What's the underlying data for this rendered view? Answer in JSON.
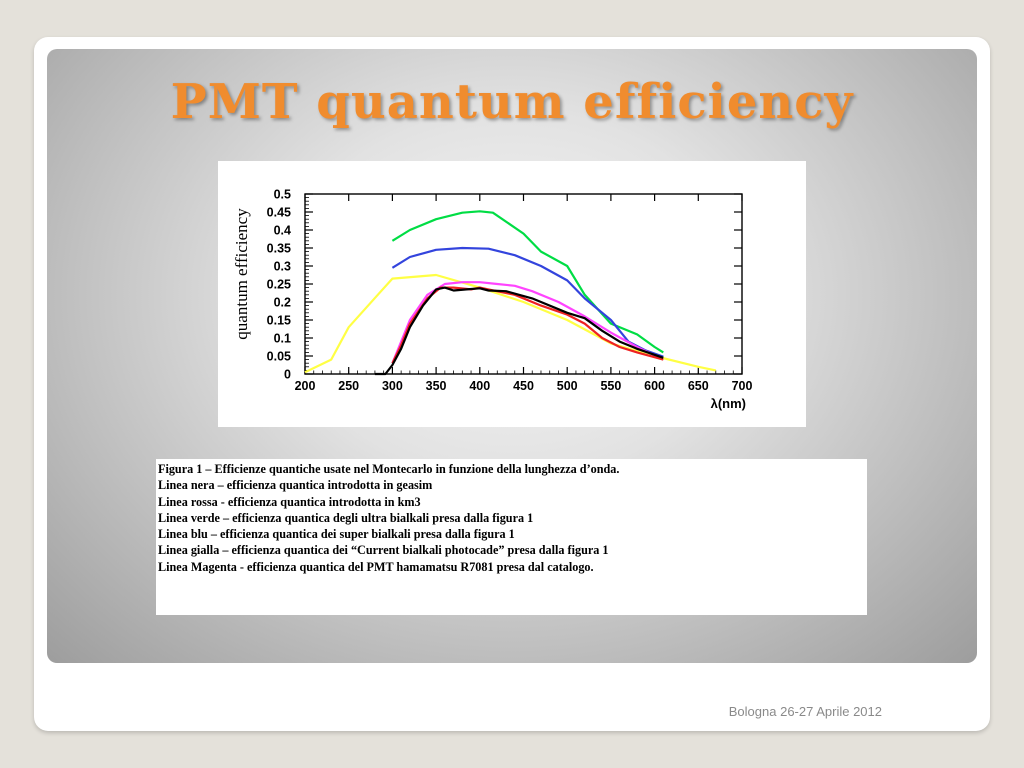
{
  "slide": {
    "title": "PMT quantum efficiency",
    "footer": "Bologna 26-27 Aprile 2012"
  },
  "caption": {
    "lines": [
      "Figura 1 – Efficienze quantiche usate nel Montecarlo in funzione della lunghezza d’onda.",
      "Linea nera – efficienza quantica introdotta in geasim",
      "Linea rossa -  efficienza quantica introdotta in km3",
      "Linea verde – efficienza quantica degli ultra bialkali presa dalla figura 1",
      "Linea blu – efficienza quantica dei super bialkali presa dalla figura 1",
      "Linea gialla – efficienza quantica  dei “Current bialkali photocade” presa dalla figura 1",
      "Linea Magenta - efficienza quantica  del PMT hamamatsu R7081 presa dal catalogo."
    ]
  },
  "chart_data": {
    "type": "line",
    "title": "",
    "xlabel": "λ(nm)",
    "ylabel": "quantum efficiency",
    "xlim": [
      200,
      700
    ],
    "ylim": [
      0,
      0.5
    ],
    "xticks": [
      "200",
      "250",
      "300",
      "350",
      "400",
      "450",
      "500",
      "550",
      "600",
      "650",
      "700"
    ],
    "yticks": [
      "0",
      "0.05",
      "0.1",
      "0.15",
      "0.2",
      "0.25",
      "0.3",
      "0.35",
      "0.4",
      "0.45",
      "0.5"
    ],
    "grid": false,
    "series": [
      {
        "color": "#00dd44",
        "points": [
          [
            300,
            0.37
          ],
          [
            320,
            0.4
          ],
          [
            350,
            0.43
          ],
          [
            380,
            0.448
          ],
          [
            400,
            0.452
          ],
          [
            415,
            0.448
          ],
          [
            450,
            0.39
          ],
          [
            470,
            0.34
          ],
          [
            500,
            0.3
          ],
          [
            520,
            0.22
          ],
          [
            550,
            0.14
          ],
          [
            580,
            0.11
          ],
          [
            600,
            0.075
          ],
          [
            610,
            0.06
          ]
        ]
      },
      {
        "color": "#3344dd",
        "points": [
          [
            300,
            0.295
          ],
          [
            320,
            0.325
          ],
          [
            350,
            0.345
          ],
          [
            380,
            0.35
          ],
          [
            410,
            0.348
          ],
          [
            440,
            0.33
          ],
          [
            470,
            0.3
          ],
          [
            500,
            0.26
          ],
          [
            520,
            0.21
          ],
          [
            550,
            0.15
          ],
          [
            570,
            0.09
          ],
          [
            590,
            0.065
          ],
          [
            610,
            0.048
          ]
        ]
      },
      {
        "color": "#ffff44",
        "points": [
          [
            200,
            0.005
          ],
          [
            230,
            0.04
          ],
          [
            250,
            0.13
          ],
          [
            300,
            0.265
          ],
          [
            350,
            0.275
          ],
          [
            400,
            0.24
          ],
          [
            450,
            0.2
          ],
          [
            500,
            0.15
          ],
          [
            550,
            0.085
          ],
          [
            600,
            0.05
          ],
          [
            650,
            0.02
          ],
          [
            670,
            0.01
          ]
        ]
      },
      {
        "color": "#ff44ff",
        "points": [
          [
            300,
            0.03
          ],
          [
            320,
            0.15
          ],
          [
            340,
            0.22
          ],
          [
            360,
            0.25
          ],
          [
            380,
            0.255
          ],
          [
            400,
            0.255
          ],
          [
            420,
            0.25
          ],
          [
            440,
            0.245
          ],
          [
            460,
            0.23
          ],
          [
            490,
            0.2
          ],
          [
            520,
            0.16
          ],
          [
            550,
            0.115
          ],
          [
            580,
            0.075
          ],
          [
            610,
            0.04
          ]
        ]
      },
      {
        "color": "#ee2222",
        "points": [
          [
            300,
            0.03
          ],
          [
            310,
            0.08
          ],
          [
            320,
            0.14
          ],
          [
            340,
            0.21
          ],
          [
            355,
            0.24
          ],
          [
            370,
            0.24
          ],
          [
            390,
            0.235
          ],
          [
            400,
            0.24
          ],
          [
            410,
            0.235
          ],
          [
            440,
            0.22
          ],
          [
            470,
            0.19
          ],
          [
            500,
            0.165
          ],
          [
            520,
            0.14
          ],
          [
            540,
            0.1
          ],
          [
            560,
            0.075
          ],
          [
            580,
            0.06
          ],
          [
            610,
            0.04
          ]
        ]
      },
      {
        "color": "#000000",
        "points": [
          [
            280,
            0.0
          ],
          [
            292,
            0.0
          ],
          [
            300,
            0.025
          ],
          [
            310,
            0.07
          ],
          [
            320,
            0.13
          ],
          [
            335,
            0.19
          ],
          [
            350,
            0.235
          ],
          [
            360,
            0.24
          ],
          [
            370,
            0.232
          ],
          [
            385,
            0.235
          ],
          [
            400,
            0.238
          ],
          [
            410,
            0.232
          ],
          [
            430,
            0.23
          ],
          [
            460,
            0.21
          ],
          [
            500,
            0.17
          ],
          [
            520,
            0.155
          ],
          [
            540,
            0.12
          ],
          [
            560,
            0.09
          ],
          [
            580,
            0.07
          ],
          [
            610,
            0.045
          ]
        ]
      }
    ]
  }
}
